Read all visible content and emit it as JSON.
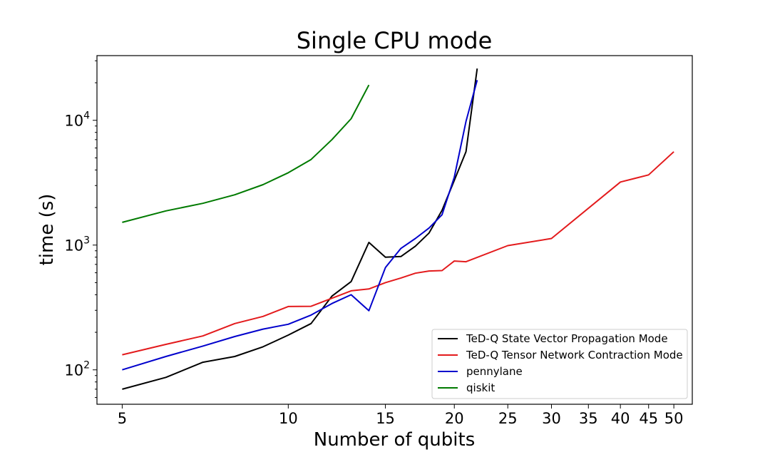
{
  "chart_data": {
    "type": "line",
    "title": "Single CPU mode",
    "xlabel": "Number of qubits",
    "ylabel": "time (s)",
    "x_scale": "log",
    "y_scale": "log",
    "xlim": [
      4.5,
      54
    ],
    "ylim": [
      53,
      33000
    ],
    "xticks": [
      5,
      10,
      15,
      20,
      25,
      30,
      35,
      40,
      45,
      50
    ],
    "yticks": [
      {
        "base": "10",
        "exp": "2",
        "value": 100
      },
      {
        "base": "10",
        "exp": "3",
        "value": 1000
      },
      {
        "base": "10",
        "exp": "4",
        "value": 10000
      }
    ],
    "grid": false,
    "legend_position": "lower-right",
    "series": [
      {
        "name": "TeD-Q State Vector Propagation Mode",
        "color": "#000000",
        "x": [
          5,
          6,
          7,
          8,
          9,
          10,
          11,
          12,
          13,
          14,
          15,
          16,
          17,
          18,
          19,
          20,
          21,
          22
        ],
        "y": [
          70,
          87,
          115,
          128,
          153,
          190,
          235,
          390,
          510,
          1050,
          800,
          810,
          980,
          1250,
          1900,
          3300,
          5600,
          26000
        ]
      },
      {
        "name": "TeD-Q Tensor Network Contraction Mode",
        "color": "#e31a1c",
        "x": [
          5,
          6,
          7,
          8,
          9,
          10,
          11,
          12,
          13,
          14,
          15,
          16,
          17,
          18,
          19,
          20,
          21,
          25,
          30,
          40,
          45,
          50
        ],
        "y": [
          132,
          160,
          187,
          235,
          268,
          322,
          323,
          375,
          430,
          445,
          500,
          545,
          595,
          620,
          625,
          745,
          735,
          990,
          1130,
          3200,
          3650,
          5600
        ]
      },
      {
        "name": "pennylane",
        "color": "#0000cc",
        "x": [
          5,
          6,
          7,
          8,
          9,
          10,
          11,
          12,
          13,
          14,
          15,
          16,
          17,
          18,
          19,
          20,
          21,
          22
        ],
        "y": [
          100,
          128,
          155,
          185,
          212,
          232,
          275,
          340,
          400,
          298,
          660,
          940,
          1130,
          1370,
          1750,
          3500,
          9800,
          21000
        ]
      },
      {
        "name": "qiskit",
        "color": "#007a00",
        "x": [
          5,
          6,
          7,
          8,
          9,
          10,
          11,
          12,
          13,
          14
        ],
        "y": [
          1520,
          1880,
          2160,
          2530,
          3050,
          3800,
          4850,
          7000,
          10300,
          19200
        ]
      }
    ]
  }
}
